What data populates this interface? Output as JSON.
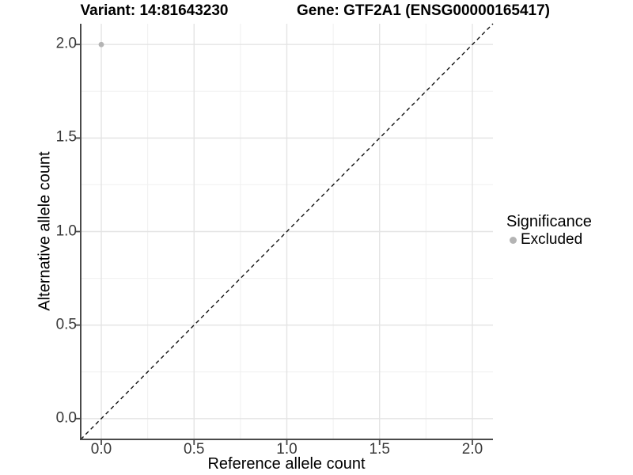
{
  "chart_data": {
    "type": "scatter",
    "titles": {
      "left": "Variant: 14:81643230",
      "right": "Gene: GTF2A1 (ENSG00000165417)"
    },
    "xlabel": "Reference allele count",
    "ylabel": "Alternative allele count",
    "xlim": [
      -0.111,
      2.111
    ],
    "ylim": [
      -0.111,
      2.111
    ],
    "x_ticks": {
      "values": [
        0,
        0.5,
        1,
        1.5,
        2
      ],
      "labels": [
        "0.0",
        "0.5",
        "1.0",
        "1.5",
        "2.0"
      ]
    },
    "y_ticks": {
      "values": [
        0,
        0.5,
        1,
        1.5,
        2
      ],
      "labels": [
        "0.0",
        "0.5",
        "1.0",
        "1.5",
        "2.0"
      ]
    },
    "minor_ticks": [
      0.25,
      0.75,
      1.25,
      1.75
    ],
    "grid": "major-and-minor",
    "points": [
      {
        "x": 0.0,
        "y": 2.0,
        "significance": "Excluded"
      }
    ],
    "reference_line": {
      "type": "identity",
      "style": "dashed",
      "from": [
        -0.111,
        -0.111
      ],
      "to": [
        2.111,
        2.111
      ],
      "color": "#111111"
    },
    "legend": {
      "title": "Significance",
      "position": "right",
      "entries": [
        {
          "label": "Excluded",
          "color": "#b4b4b4",
          "marker": "circle"
        }
      ]
    },
    "colors": {
      "point": "#b4b4b4",
      "grid_major": "#e4e4e4",
      "grid_minor": "#f0f0f0",
      "axis_line": "#4a4a4a",
      "tick_text": "#383838",
      "title_text": "#000000"
    }
  }
}
